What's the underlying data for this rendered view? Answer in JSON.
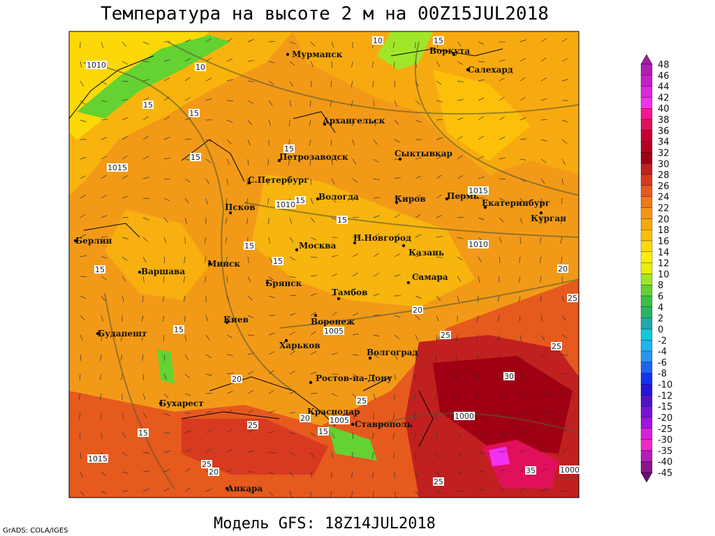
{
  "header": {
    "title": "Температура на высоте 2 м на 00Z15JUL2018"
  },
  "footer": {
    "subtitle": "Модель GFS: 18Z14JUL2018",
    "credit": "GrADS: COLA/IGES"
  },
  "map": {
    "cities": [
      "Мурманск",
      "Воркута",
      "Салехард",
      "Архангельск",
      "Сыктывкар",
      "Петрозаводск",
      "С.Петербург",
      "Вологда",
      "Киров",
      "Пермь",
      "Екатеринбург",
      "Курган",
      "Псков",
      "Н.Новгород",
      "Берлин",
      "Москва",
      "Казань",
      "Минск",
      "Варшава",
      "Брянск",
      "Самара",
      "Тамбов",
      "Киев",
      "Воронеж",
      "Будапешт",
      "Харьков",
      "Волгоград",
      "Ростов-на-Дону",
      "Бухарест",
      "Краснодар",
      "Ставрополь",
      "Анкара"
    ],
    "contour_labels": [
      1010,
      10,
      15,
      10,
      15,
      1015,
      15,
      15,
      15,
      1010,
      15,
      1015,
      15,
      1010,
      15,
      15,
      15,
      20,
      20,
      25,
      1005,
      15,
      25,
      20,
      25,
      30,
      25,
      1005,
      25,
      1000,
      25,
      35,
      1000,
      20,
      25,
      15,
      1015,
      20,
      15
    ]
  },
  "colorbar": {
    "levels": [
      48,
      46,
      44,
      42,
      40,
      38,
      36,
      34,
      32,
      30,
      28,
      26,
      24,
      22,
      20,
      18,
      16,
      14,
      12,
      10,
      8,
      6,
      4,
      2,
      0,
      -2,
      -4,
      -6,
      -8,
      -10,
      -12,
      -15,
      -20,
      -25,
      -30,
      -35,
      -40,
      -45
    ],
    "colors": [
      "#a020a0",
      "#b01eb0",
      "#c81ec8",
      "#dc28dc",
      "#f032f0",
      "#ff1493",
      "#e0105a",
      "#c80032",
      "#b40020",
      "#a00014",
      "#c02020",
      "#d83a20",
      "#e65a1e",
      "#ee7a1a",
      "#f49614",
      "#f8a80c",
      "#fac00a",
      "#fcd808",
      "#fcec08",
      "#e8f000",
      "#a0e628",
      "#64d232",
      "#3cbe46",
      "#28b464",
      "#1eaaaa",
      "#14c8dc",
      "#1eb4f0",
      "#2896f0",
      "#1e64f0",
      "#1432f0",
      "#2814dc",
      "#5014c8",
      "#7814d2",
      "#a014e6",
      "#dc1edc",
      "#f028c8",
      "#b41eb4",
      "#8c148c",
      "#6e0a78"
    ]
  }
}
